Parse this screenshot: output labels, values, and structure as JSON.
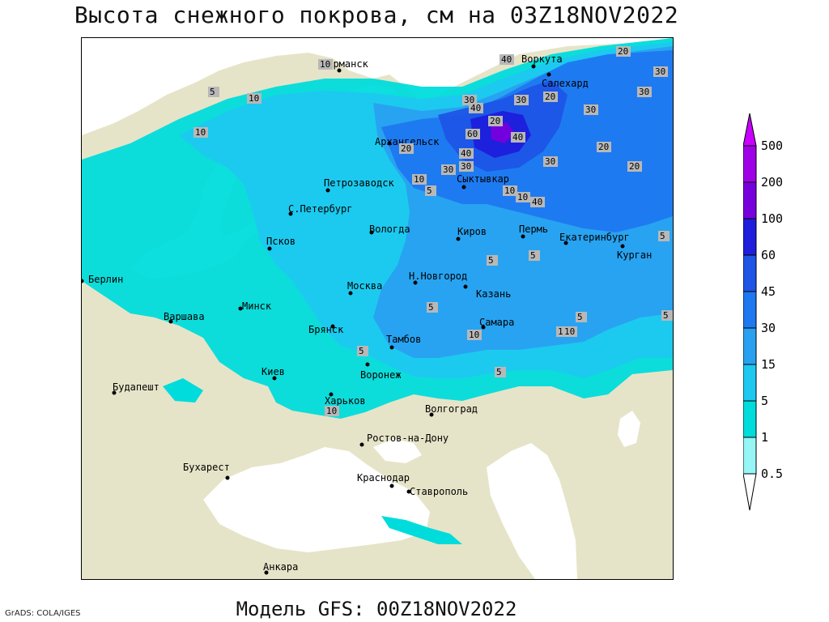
{
  "title": "Высота снежного покрова, см на 03Z18NOV2022",
  "footer": "Модель GFS: 00Z18NOV2022",
  "credit": "GrADS: COLA/IGES",
  "colors": {
    "land": "#e6e4c8",
    "sea": "#ffffff",
    "snow_0_5": "#96f5f5",
    "snow_1": "#00dcdc",
    "snow_5": "#1ec8f0",
    "snow_15": "#29a0f0",
    "snow_30": "#1e78f0",
    "snow_45": "#1e55e6",
    "snow_60": "#1e1edc",
    "snow_100": "#7800dc",
    "snow_200": "#a000e6",
    "snow_500": "#c800ff"
  },
  "legend": {
    "labels": [
      "0.5",
      "1",
      "5",
      "15",
      "30",
      "45",
      "60",
      "100",
      "200",
      "500"
    ]
  },
  "cities": [
    {
      "name": "Мурманск"
    },
    {
      "name": "Воркута"
    },
    {
      "name": "Салехард"
    },
    {
      "name": "Архангельск"
    },
    {
      "name": "Петрозаводск"
    },
    {
      "name": "Сыктывкар"
    },
    {
      "name": "С.Петербург"
    },
    {
      "name": "Вологда"
    },
    {
      "name": "Киров"
    },
    {
      "name": "Пермь"
    },
    {
      "name": "Екатеринбург"
    },
    {
      "name": "Курган"
    },
    {
      "name": "Псков"
    },
    {
      "name": "Н.Новгород"
    },
    {
      "name": "Берлин"
    },
    {
      "name": "Москва"
    },
    {
      "name": "Казань"
    },
    {
      "name": "Минск"
    },
    {
      "name": "Варшава"
    },
    {
      "name": "Брянск"
    },
    {
      "name": "Самара"
    },
    {
      "name": "Тамбов"
    },
    {
      "name": "Киев"
    },
    {
      "name": "Воронеж"
    },
    {
      "name": "Будапешт"
    },
    {
      "name": "Харьков"
    },
    {
      "name": "Волгоград"
    },
    {
      "name": "Ростов-на-Дону"
    },
    {
      "name": "Бухарест"
    },
    {
      "name": "Краснодар"
    },
    {
      "name": "Ставрополь"
    },
    {
      "name": "Анкара"
    }
  ],
  "contour_labels": [
    "40",
    "20",
    "30",
    "30",
    "20",
    "30",
    "20",
    "10",
    "5",
    "10",
    "30",
    "40",
    "30",
    "60",
    "40",
    "30",
    "20",
    "40",
    "20",
    "30",
    "20",
    "10",
    "5",
    "40",
    "10",
    "10",
    "5",
    "5",
    "5",
    "10",
    "5",
    "10",
    "5",
    "5",
    "10",
    "5",
    "5",
    "10",
    "10",
    "30"
  ]
}
